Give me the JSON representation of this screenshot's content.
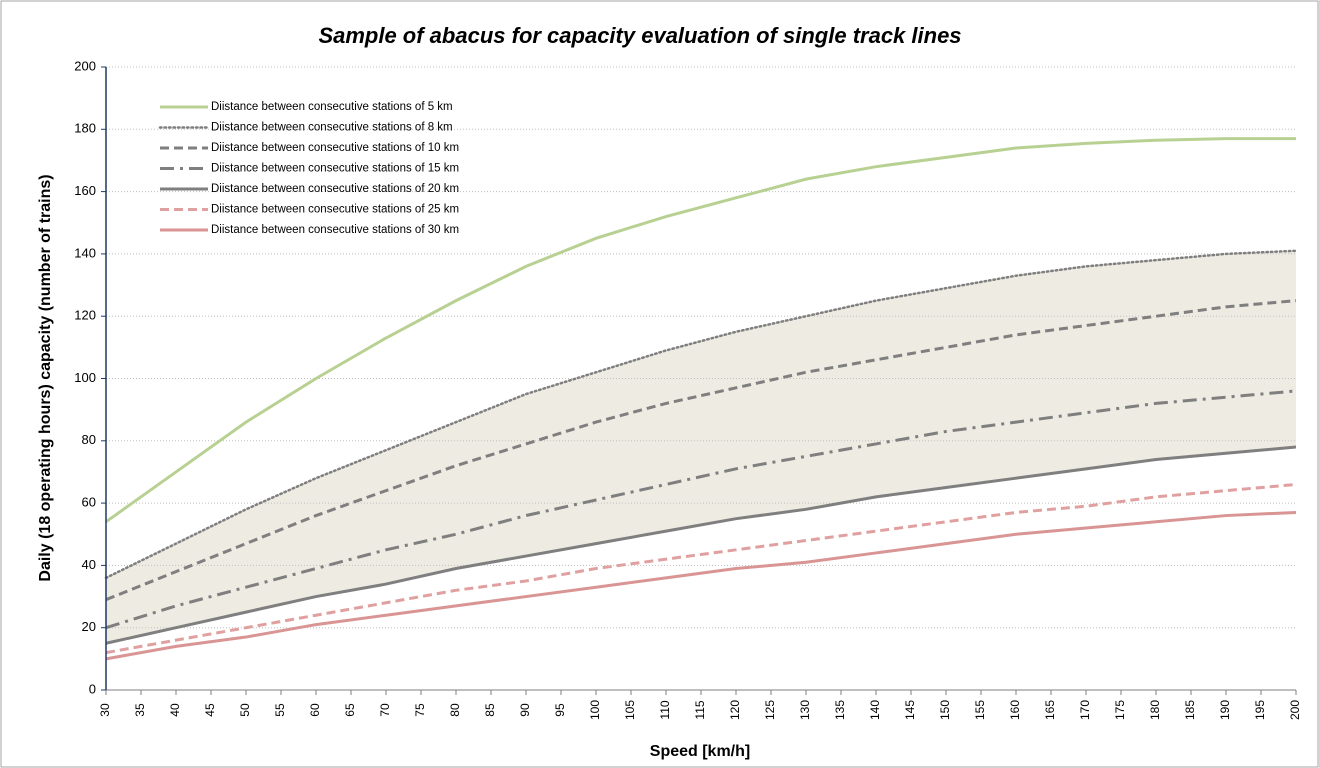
{
  "chart_data": {
    "type": "line",
    "title": "Sample of abacus for capacity evaluation of single track lines",
    "xlabel": "Speed [km/h]",
    "ylabel": "Daily (18 operating hours) capacity (number of trains)",
    "x": [
      30,
      40,
      50,
      60,
      70,
      80,
      90,
      100,
      110,
      120,
      130,
      140,
      150,
      160,
      170,
      180,
      190,
      200
    ],
    "series": [
      {
        "name": "Diistance between consecutive stations of 5 km",
        "color": "#b8d193",
        "dash": "solid",
        "values": [
          54,
          70,
          86,
          100,
          113,
          125,
          136,
          145,
          152,
          158,
          164,
          168,
          171,
          174,
          175.5,
          176.5,
          177,
          177
        ]
      },
      {
        "name": "Diistance between consecutive stations of 8 km",
        "color": "#7f7f7f",
        "dash": "dotted",
        "values": [
          36,
          47,
          58,
          68,
          77,
          86,
          95,
          102,
          109,
          115,
          120,
          125,
          129,
          133,
          136,
          138,
          140,
          141
        ]
      },
      {
        "name": "Diistance between consecutive stations of 10 km",
        "color": "#7f7f7f",
        "dash": "dashed",
        "values": [
          29,
          38,
          47,
          56,
          64,
          72,
          79,
          86,
          92,
          97,
          102,
          106,
          110,
          114,
          117,
          120,
          123,
          125
        ]
      },
      {
        "name": "Diistance between consecutive stations of 15 km",
        "color": "#7f7f7f",
        "dash": "dashdot",
        "values": [
          20,
          27,
          33,
          39,
          45,
          50,
          56,
          61,
          66,
          71,
          75,
          79,
          83,
          86,
          89,
          92,
          94,
          96
        ]
      },
      {
        "name": "Diistance between consecutive stations of 20 km",
        "color": "#7f7f7f",
        "dash": "solid",
        "values": [
          15,
          20,
          25,
          30,
          34,
          39,
          43,
          47,
          51,
          55,
          58,
          62,
          65,
          68,
          71,
          74,
          76,
          78
        ]
      },
      {
        "name": "Diistance between consecutive stations of 25 km",
        "color": "#e0a0a0",
        "dash": "dashed",
        "values": [
          12,
          16,
          20,
          24,
          28,
          32,
          35,
          39,
          42,
          45,
          48,
          51,
          54,
          57,
          59,
          62,
          64,
          66
        ]
      },
      {
        "name": "Diistance between consecutive stations of 30 km",
        "color": "#d99594",
        "dash": "solid",
        "values": [
          10,
          14,
          17,
          21,
          24,
          27,
          30,
          33,
          36,
          39,
          41,
          44,
          47,
          50,
          52,
          54,
          56,
          57
        ]
      }
    ],
    "xlim": [
      30,
      200
    ],
    "xticks": [
      30,
      35,
      40,
      45,
      50,
      55,
      60,
      65,
      70,
      75,
      80,
      85,
      90,
      95,
      100,
      105,
      110,
      115,
      120,
      125,
      130,
      135,
      140,
      145,
      150,
      155,
      160,
      165,
      170,
      175,
      180,
      185,
      190,
      195,
      200
    ],
    "ylim": [
      0,
      200
    ],
    "yticks": [
      0,
      20,
      40,
      60,
      80,
      100,
      120,
      140,
      160,
      180,
      200
    ],
    "grid": true,
    "legend": "upper left"
  }
}
